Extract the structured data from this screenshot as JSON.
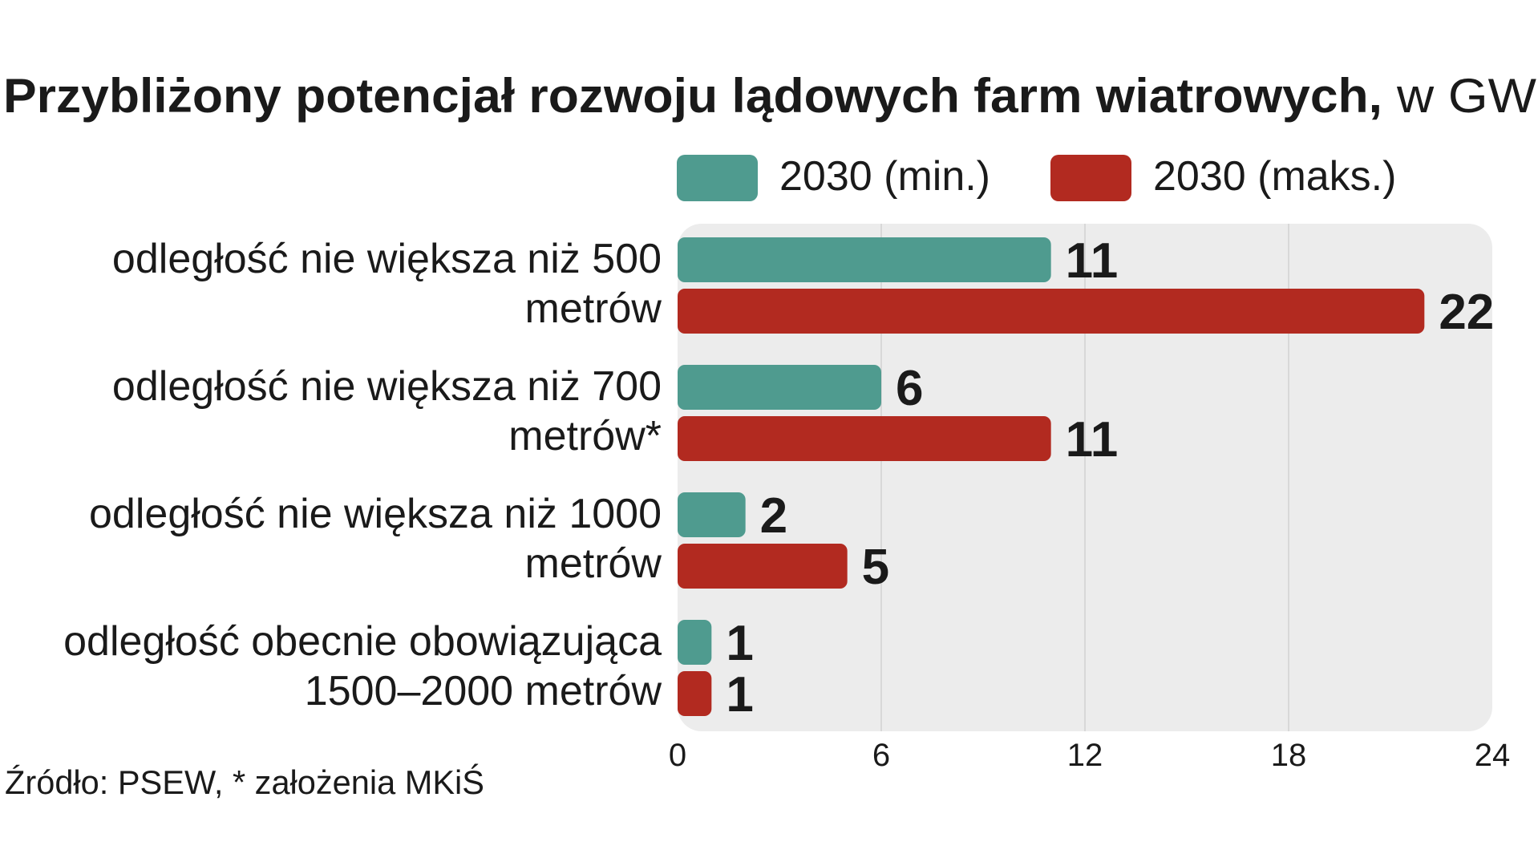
{
  "chart_data": {
    "type": "bar",
    "orientation": "horizontal",
    "title": "Przybliżony potencjał rozwoju lądowych farm wiatrowych,",
    "title_unit": "w GW",
    "categories": [
      [
        "odległość nie większa niż 500",
        "metrów"
      ],
      [
        "odległość nie większa niż 700",
        "metrów*"
      ],
      [
        "odległość nie większa niż 1000",
        "metrów"
      ],
      [
        "odległość obecnie obowiązująca",
        "1500–2000 metrów"
      ]
    ],
    "series": [
      {
        "name": "2030 (min.)",
        "color": "#4f9b8f",
        "values": [
          11,
          6,
          2,
          1
        ]
      },
      {
        "name": "2030 (maks.)",
        "color": "#b22a20",
        "values": [
          22,
          11,
          5,
          1
        ]
      }
    ],
    "xlim": [
      0,
      24
    ],
    "xticks": [
      "0",
      "6",
      "12",
      "18",
      "24"
    ],
    "grid": true,
    "legend_placement": "top",
    "plot_background": "#ececec",
    "source": "Źródło: PSEW, * założenia MKiŚ"
  }
}
